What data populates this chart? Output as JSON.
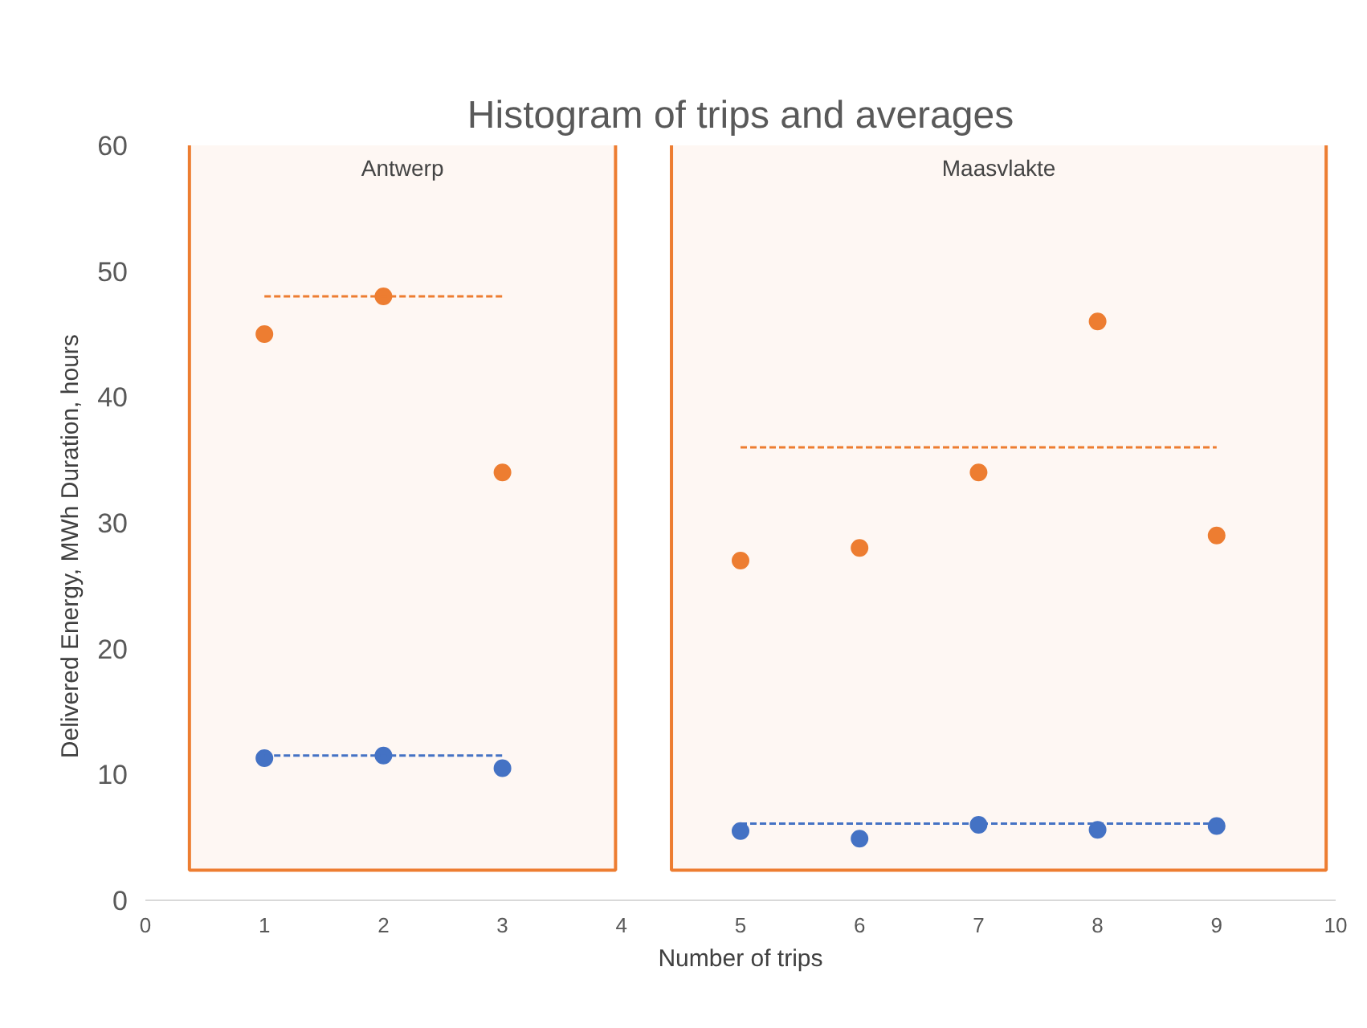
{
  "chart_data": {
    "type": "scatter",
    "title": "Histogram of trips and averages",
    "xlabel": "Number of trips",
    "ylabel": "Delivered Energy, MWh        Duration, hours",
    "xlim": [
      0,
      10
    ],
    "xticks": [
      0,
      1,
      2,
      3,
      4,
      5,
      6,
      7,
      8,
      9,
      10
    ],
    "ylim": [
      0,
      60
    ],
    "yticks": [
      0,
      10,
      20,
      30,
      40,
      50,
      60
    ],
    "grid": false,
    "series": [
      {
        "marker": "circle",
        "color": "#ed7d31",
        "x": [
          1,
          2,
          3,
          5,
          6,
          7,
          8,
          9
        ],
        "values": [
          45,
          48,
          34,
          27,
          28,
          34,
          46,
          29
        ]
      },
      {
        "marker": "circle",
        "color": "#4472c4",
        "x": [
          1,
          2,
          3,
          5,
          6,
          7,
          8,
          9
        ],
        "values": [
          11.3,
          11.5,
          10.5,
          5.5,
          4.9,
          6.0,
          5.6,
          5.9
        ]
      },
      {
        "type": "line",
        "marker": "none",
        "line_style": "dashed",
        "color": "#ed7d31",
        "x": [
          1,
          3
        ],
        "values": [
          48,
          48
        ]
      },
      {
        "type": "line",
        "marker": "none",
        "line_style": "dashed",
        "color": "#4472c4",
        "x": [
          1,
          3
        ],
        "values": [
          11.5,
          11.5
        ]
      },
      {
        "type": "line",
        "marker": "none",
        "line_style": "dashed",
        "color": "#ed7d31",
        "x": [
          5,
          9
        ],
        "values": [
          36,
          36
        ]
      },
      {
        "type": "line",
        "marker": "none",
        "line_style": "dashed",
        "color": "#4472c4",
        "x": [
          5,
          9
        ],
        "values": [
          6.1,
          6.1
        ]
      }
    ],
    "bands": [
      {
        "axis": "x",
        "from": 0.37,
        "to": 3.95,
        "label": "Antwerp",
        "color": "#ed7d31"
      },
      {
        "axis": "x",
        "from": 4.42,
        "to": 9.92,
        "label": "Maasvlakte",
        "color": "#ed7d31"
      }
    ]
  }
}
